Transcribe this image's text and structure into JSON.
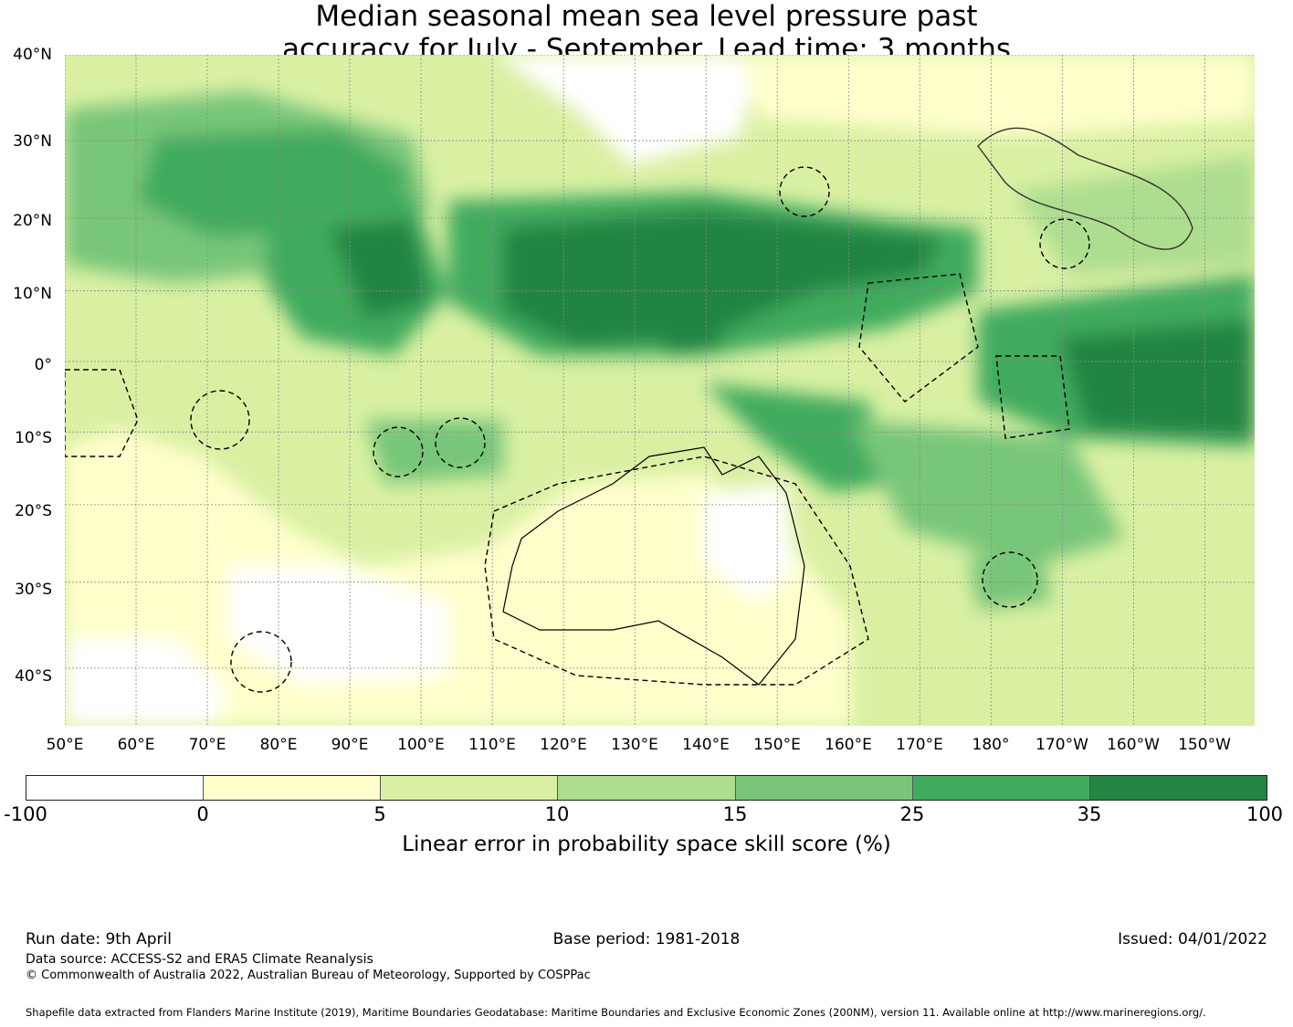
{
  "title_line1": "Median seasonal mean sea level pressure past",
  "title_line2": "accuracy for July - September. Lead time: 3 months",
  "map": {
    "lat_labels": [
      "40°N",
      "30°N",
      "20°N",
      "10°N",
      "0°",
      "10°S",
      "20°S",
      "30°S",
      "40°S"
    ],
    "lon_labels": [
      "50°E",
      "60°E",
      "70°E",
      "80°E",
      "90°E",
      "100°E",
      "110°E",
      "120°E",
      "130°E",
      "140°E",
      "150°E",
      "160°E",
      "170°E",
      "180°",
      "170°W",
      "160°W",
      "150°W"
    ],
    "extent": {
      "lon_min": 50,
      "lon_max": 217,
      "lat_min": -46,
      "lat_max": 40
    },
    "gridlines": true
  },
  "colorbar": {
    "ticks": [
      "-100",
      "0",
      "5",
      "10",
      "15",
      "25",
      "35",
      "100"
    ],
    "colors": [
      "#ffffff",
      "#ffffcc",
      "#d9f0a3",
      "#addd8e",
      "#78c679",
      "#41ab5d",
      "#238443"
    ],
    "label": "Linear error in probability space skill score (%)"
  },
  "footer": {
    "run_date": "Run date: 9th April",
    "base_period": "Base period: 1981-2018",
    "issued": "Issued: 04/01/2022",
    "data_source": "Data source: ACCESS-S2 and ERA5 Climate Reanalysis",
    "copyright": "© Commonwealth of Australia 2022, Australian Bureau of Meteorology, Supported by COSPPac",
    "shapefile": "Shapefile data extracted from Flanders Marine Institute (2019), Maritime Boundaries Geodatabase: Maritime Boundaries and Exclusive Economic Zones (200NM), version 11. Available online at http://www.marineregions.org/."
  }
}
